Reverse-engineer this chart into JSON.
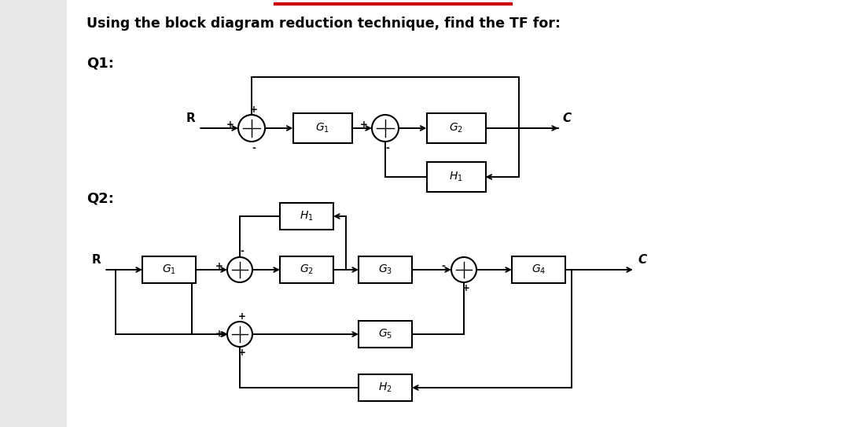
{
  "title": "Using the block diagram reduction technique, find the TF for:",
  "q1_label": "Q1:",
  "q2_label": "Q2:",
  "bg_color": "#ffffff",
  "page_bg": "#e8e8e8",
  "text_color": "#000000",
  "box_color": "#ffffff",
  "box_edge": "#000000",
  "line_color": "#000000",
  "red_line_color": "#cc0000",
  "title_fontsize": 12.5,
  "label_fontsize": 13,
  "block_fontsize": 10,
  "sign_fontsize": 8.5
}
